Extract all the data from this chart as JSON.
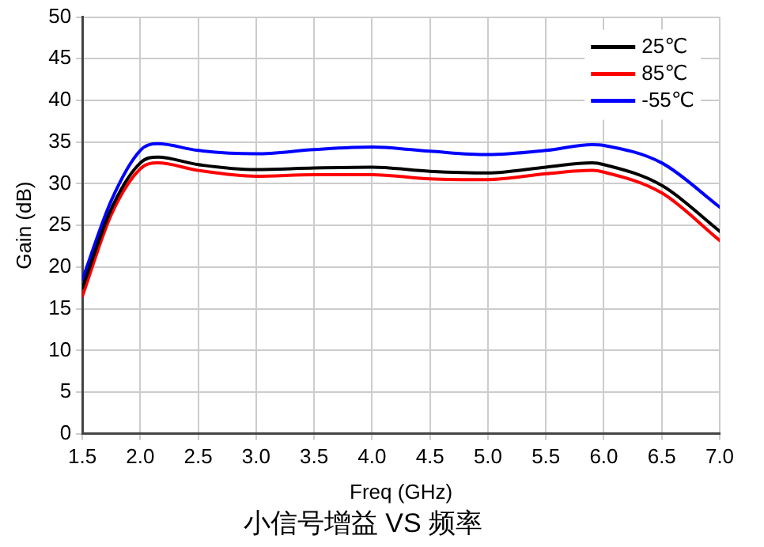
{
  "chart_data": {
    "type": "line",
    "title": "小信号增益 VS 频率",
    "xlabel": "Freq (GHz)",
    "ylabel": "Gain (dB)",
    "x": [
      1.5,
      1.75,
      2.0,
      2.15,
      2.5,
      3.0,
      3.5,
      4.0,
      4.5,
      5.0,
      5.5,
      5.9,
      6.0,
      6.5,
      7.0
    ],
    "series": [
      {
        "name": "25℃",
        "color": "#000000",
        "values": [
          17.5,
          27,
          32.5,
          33.2,
          32.3,
          31.7,
          31.9,
          32,
          31.5,
          31.3,
          32,
          32.5,
          32.3,
          29.8,
          24.3
        ]
      },
      {
        "name": "85℃",
        "color": "#ff0000",
        "values": [
          16.5,
          26.3,
          31.8,
          32.5,
          31.6,
          30.9,
          31.1,
          31.1,
          30.6,
          30.5,
          31.2,
          31.6,
          31.4,
          28.9,
          23.2
        ]
      },
      {
        "name": "-55℃",
        "color": "#0000ff",
        "values": [
          18.5,
          28,
          34,
          34.8,
          34,
          33.6,
          34.1,
          34.4,
          33.9,
          33.5,
          34,
          34.7,
          34.6,
          32.5,
          27.2
        ]
      }
    ],
    "xlim": [
      1.5,
      7.0
    ],
    "xticks": [
      {
        "value": 1.5,
        "label": "1.5"
      },
      {
        "value": 2.0,
        "label": "2.0"
      },
      {
        "value": 2.5,
        "label": "2.5"
      },
      {
        "value": 3.0,
        "label": "3.0"
      },
      {
        "value": 3.5,
        "label": "3.5"
      },
      {
        "value": 4.0,
        "label": "4.0"
      },
      {
        "value": 4.5,
        "label": "4.5"
      },
      {
        "value": 5.0,
        "label": "5.0"
      },
      {
        "value": 5.5,
        "label": "5.5"
      },
      {
        "value": 6.0,
        "label": "6.0"
      },
      {
        "value": 6.5,
        "label": "6.5"
      },
      {
        "value": 7.0,
        "label": "7.0"
      }
    ],
    "ylim": [
      0,
      50
    ],
    "yticks": [
      0,
      5,
      10,
      15,
      20,
      25,
      30,
      35,
      40,
      45,
      50
    ],
    "grid": true,
    "legend": "top right",
    "marker": "none",
    "line_style": "solid"
  }
}
